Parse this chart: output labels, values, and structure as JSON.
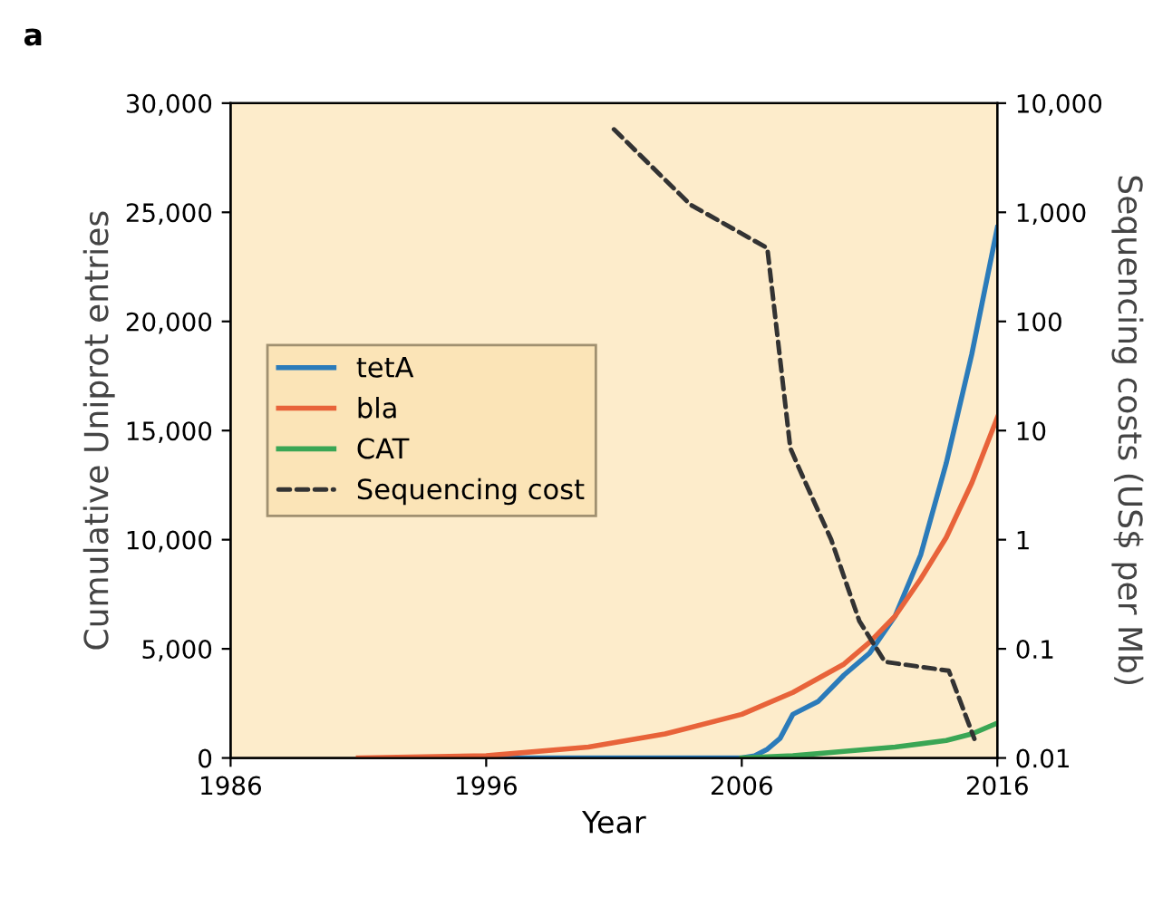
{
  "chart_data": {
    "type": "line",
    "xlabel": "Year",
    "ylabel": "Cumulative Uniprot entries",
    "y2label": "Sequencing costs (US$ per Mb)",
    "annotations": [
      "a"
    ],
    "xlim": [
      1986,
      2016
    ],
    "xticks": [
      1986,
      1996,
      2006,
      2016
    ],
    "ylim": [
      0,
      30000
    ],
    "yticks": [
      0,
      {
        "value": 5000,
        "label": "5,000"
      },
      {
        "value": 10000,
        "label": "10,000"
      },
      {
        "value": 15000,
        "label": "15,000"
      },
      {
        "value": 20000,
        "label": "20,000"
      },
      {
        "value": 25000,
        "label": "25,000"
      },
      {
        "value": 30000,
        "label": "30,000"
      }
    ],
    "log": "y2",
    "y2lim": [
      0.01,
      10000
    ],
    "y2ticks": [
      0.01,
      0.1,
      1,
      10,
      100,
      {
        "value": 1000,
        "label": "1,000"
      },
      {
        "value": 10000,
        "label": "10,000"
      }
    ],
    "legend": "center left",
    "grid": false,
    "series": [
      {
        "name": "tetA",
        "color": "#2b7bba",
        "x": [
          1996,
          2006,
          2006.5,
          2007,
          2007.5,
          2008,
          2009,
          2010,
          2011,
          2012,
          2013,
          2014,
          2015,
          2016
        ],
        "values": [
          0,
          0,
          100,
          400,
          900,
          2000,
          2600,
          3800,
          4800,
          6500,
          9300,
          13500,
          18500,
          24300
        ]
      },
      {
        "name": "bla",
        "color": "#e8633a",
        "x": [
          1991,
          1996,
          2000,
          2003,
          2006,
          2008,
          2010,
          2011,
          2012,
          2013,
          2014,
          2015,
          2016
        ],
        "values": [
          0,
          100,
          500,
          1100,
          2000,
          3000,
          4300,
          5300,
          6500,
          8200,
          10100,
          12600,
          15600
        ]
      },
      {
        "name": "CAT",
        "color": "#3aa655",
        "x": [
          2006,
          2008,
          2010,
          2012,
          2014,
          2015,
          2016
        ],
        "values": [
          0,
          100,
          300,
          500,
          800,
          1100,
          1600
        ]
      },
      {
        "name": "Sequencing cost",
        "color": "#333333",
        "axis": "y2",
        "line_style": "dashed",
        "x": [
          2001,
          2004,
          2007,
          2007.9,
          2008.3,
          2009.5,
          2010.6,
          2011.6,
          2014.1,
          2015.1
        ],
        "values": [
          5750,
          1170,
          470,
          6.9,
          4.2,
          1.0,
          0.18,
          0.076,
          0.063,
          0.015
        ]
      }
    ]
  }
}
